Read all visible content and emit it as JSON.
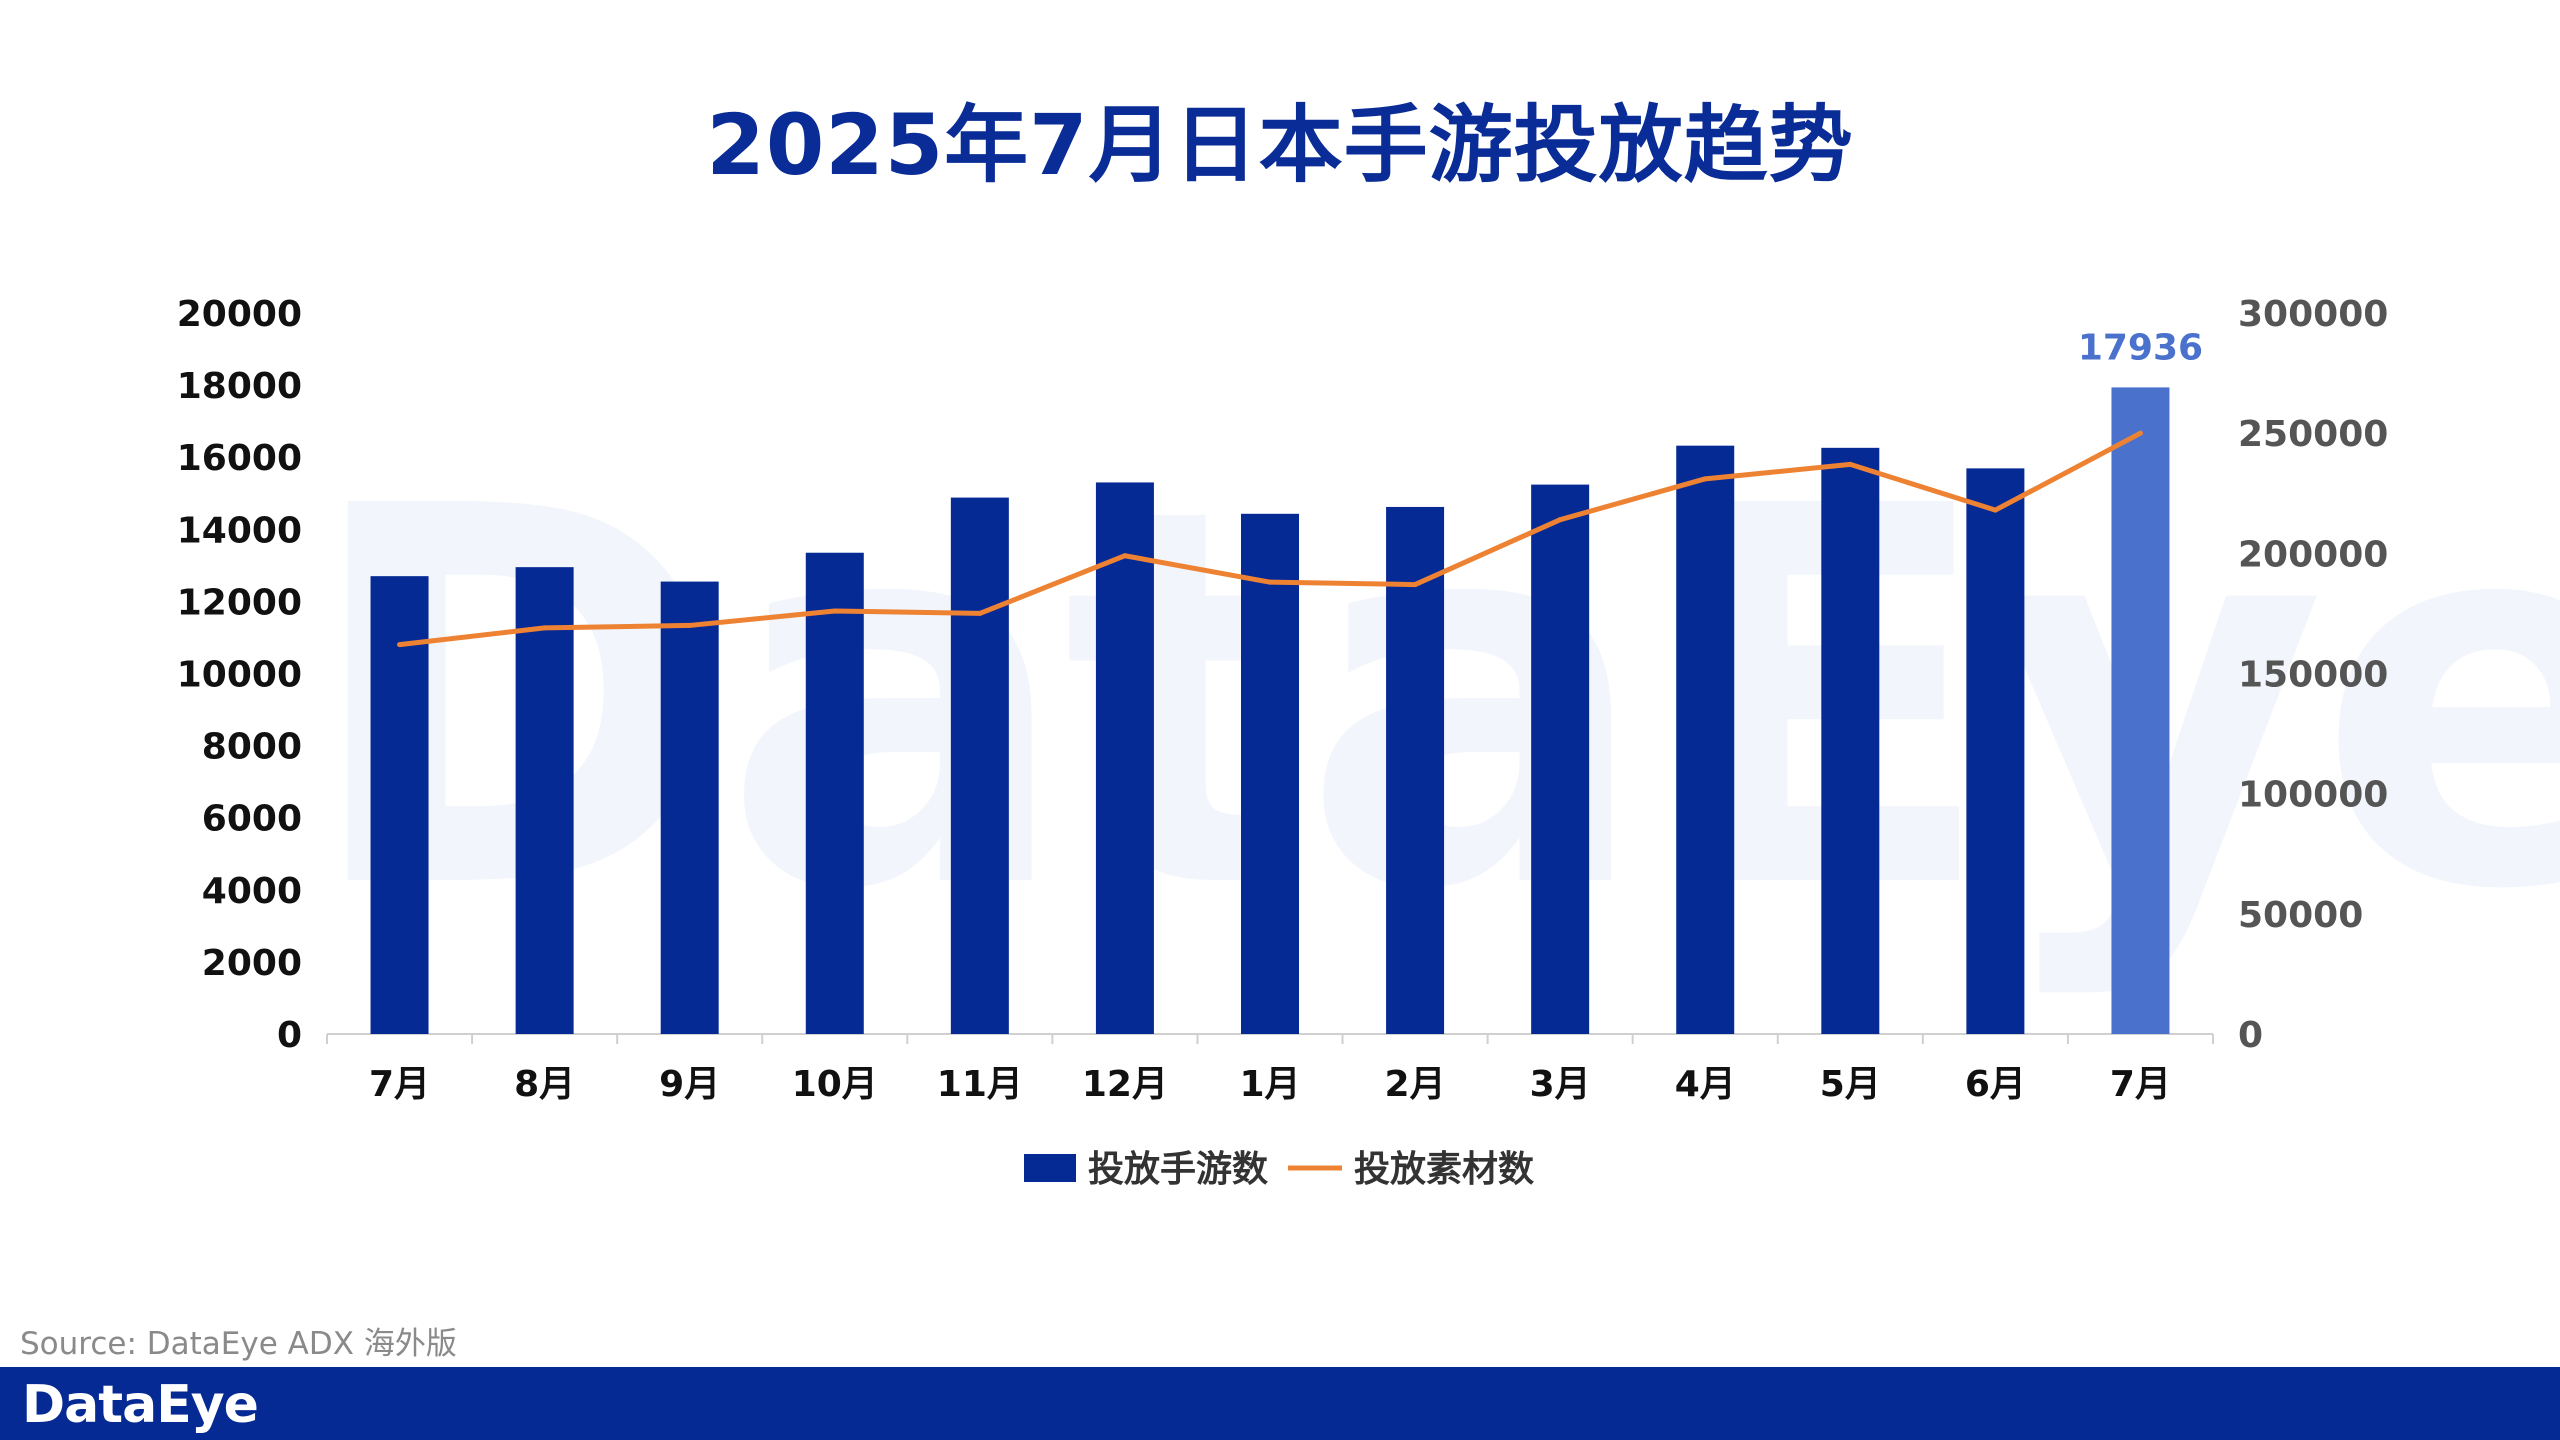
{
  "page": {
    "title": "2025年7月日本手游投放趋势",
    "source": "Source: DataEye ADX 海外版",
    "footer_logo": "DataEye",
    "watermark": "DataEye"
  },
  "chart_data": {
    "type": "bar+line",
    "title": "2025年7月日本手游投放趋势",
    "categories": [
      "7月",
      "8月",
      "9月",
      "10月",
      "11月",
      "12月",
      "1月",
      "2月",
      "3月",
      "4月",
      "5月",
      "6月",
      "7月"
    ],
    "series": [
      {
        "name": "投放手游数",
        "type": "bar",
        "axis": "left",
        "values": [
          12700,
          12950,
          12550,
          13350,
          14880,
          15300,
          14430,
          14620,
          15240,
          16320,
          16260,
          15690,
          17936
        ]
      },
      {
        "name": "投放素材数",
        "type": "line",
        "axis": "right",
        "values": [
          162000,
          169000,
          170000,
          176000,
          175000,
          199000,
          188000,
          187000,
          214000,
          231000,
          237000,
          218000,
          250000
        ]
      }
    ],
    "highlight": {
      "index": 12,
      "label": "17936"
    },
    "y_left": {
      "min": 0,
      "max": 20000,
      "ticks": [
        0,
        2000,
        4000,
        6000,
        8000,
        10000,
        12000,
        14000,
        16000,
        18000,
        20000
      ]
    },
    "y_right": {
      "min": 0,
      "max": 300000,
      "ticks": [
        0,
        50000,
        100000,
        150000,
        200000,
        250000,
        300000
      ]
    },
    "legend": [
      "投放手游数",
      "投放素材数"
    ],
    "legend_position": "bottom-center",
    "colors": {
      "bar": "#062a94",
      "bar_highlight": "#4a72cc",
      "line": "#ee8233",
      "title": "#0a2c96",
      "axis_text": "#111111",
      "right_axis_text": "#555555",
      "highlight_label": "#4a72cc"
    }
  }
}
